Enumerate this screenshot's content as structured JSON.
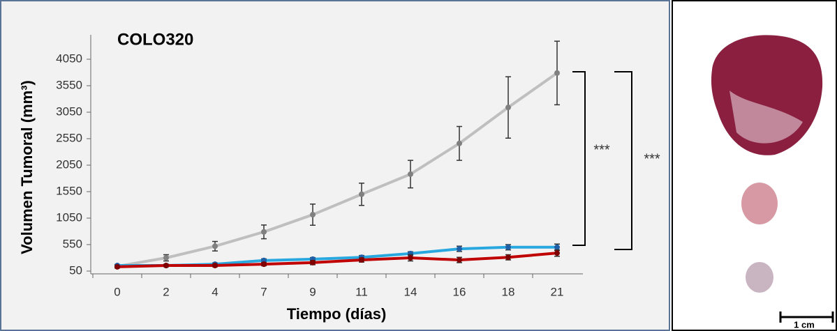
{
  "chart_data": {
    "type": "line",
    "title": "COLO320",
    "x_label": "Tiempo (días)",
    "y_label": "Volumen Tumoral (mm³)",
    "categories": [
      "0",
      "2",
      "4",
      "7",
      "9",
      "11",
      "14",
      "16",
      "18",
      "21"
    ],
    "series": [
      {
        "color": "#bfbfbf",
        "marker_color": "#808080",
        "values": [
          140,
          300,
          520,
          790,
          1115,
          1500,
          1880,
          2460,
          3140,
          3790
        ],
        "errors": [
          30,
          60,
          90,
          130,
          200,
          210,
          260,
          320,
          580,
          600
        ]
      },
      {
        "color": "#29a8e0",
        "marker_color": "#1f5fa8",
        "values": [
          155,
          155,
          180,
          250,
          275,
          310,
          380,
          470,
          500,
          500
        ],
        "errors": [
          20,
          25,
          25,
          30,
          30,
          35,
          35,
          50,
          50,
          60
        ]
      },
      {
        "color": "#c00000",
        "marker_color": "#7f0000",
        "values": [
          130,
          155,
          155,
          180,
          210,
          260,
          300,
          260,
          310,
          390
        ],
        "errors": [
          20,
          20,
          25,
          30,
          40,
          40,
          60,
          50,
          50,
          60
        ]
      }
    ],
    "ylim": [
      50,
      4450
    ],
    "yticks": [
      50,
      550,
      1050,
      1550,
      2050,
      2550,
      3050,
      3550,
      4050
    ],
    "annotations": [
      "***",
      "***"
    ],
    "scale_bar_label": "1 cm"
  }
}
